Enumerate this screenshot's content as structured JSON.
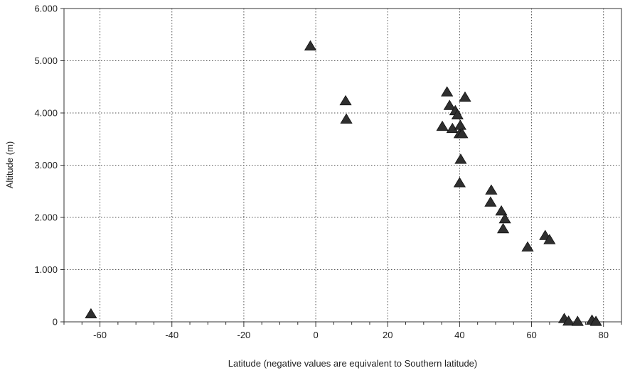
{
  "chart_data": {
    "type": "scatter",
    "title": "",
    "xlabel": "Latitude (negative values are equivalent to Southern latitude)",
    "ylabel": "Altitude (m)",
    "xlim": [
      -70,
      85
    ],
    "ylim": [
      0,
      6000
    ],
    "xticks": [
      -60,
      -40,
      -20,
      0,
      20,
      40,
      60,
      80
    ],
    "xtick_labels": [
      "-60",
      "-40",
      "-20",
      "0",
      "20",
      "40",
      "60",
      "80"
    ],
    "yticks": [
      0,
      1000,
      2000,
      3000,
      4000,
      5000,
      6000
    ],
    "ytick_labels": [
      "0",
      "1.000",
      "2.000",
      "3.000",
      "4.000",
      "5.000",
      "6.000"
    ],
    "grid": true,
    "marker": "triangle",
    "marker_color": "#2f2f2f",
    "series": [
      {
        "points": [
          {
            "x": -62.5,
            "y": 150
          },
          {
            "x": -1.5,
            "y": 5280
          },
          {
            "x": 8.3,
            "y": 4230
          },
          {
            "x": 8.5,
            "y": 3880
          },
          {
            "x": 35.2,
            "y": 3740
          },
          {
            "x": 36.5,
            "y": 4400
          },
          {
            "x": 37.2,
            "y": 4140
          },
          {
            "x": 38.0,
            "y": 3700
          },
          {
            "x": 38.8,
            "y": 4040
          },
          {
            "x": 39.4,
            "y": 3960
          },
          {
            "x": 40.0,
            "y": 3600
          },
          {
            "x": 40.2,
            "y": 3760
          },
          {
            "x": 40.7,
            "y": 3600
          },
          {
            "x": 40.3,
            "y": 3110
          },
          {
            "x": 40.0,
            "y": 2660
          },
          {
            "x": 41.5,
            "y": 4300
          },
          {
            "x": 48.8,
            "y": 2520
          },
          {
            "x": 48.6,
            "y": 2290
          },
          {
            "x": 51.6,
            "y": 2120
          },
          {
            "x": 52.6,
            "y": 1970
          },
          {
            "x": 52.1,
            "y": 1780
          },
          {
            "x": 58.9,
            "y": 1430
          },
          {
            "x": 63.8,
            "y": 1650
          },
          {
            "x": 65.0,
            "y": 1570
          },
          {
            "x": 69.1,
            "y": 60
          },
          {
            "x": 70.3,
            "y": 10
          },
          {
            "x": 72.8,
            "y": 5
          },
          {
            "x": 76.8,
            "y": 30
          },
          {
            "x": 77.9,
            "y": 5
          }
        ]
      }
    ]
  }
}
